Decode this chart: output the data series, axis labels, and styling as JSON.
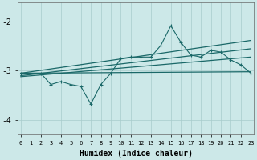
{
  "xlabel": "Humidex (Indice chaleur)",
  "xlim": [
    -0.3,
    23.3
  ],
  "ylim": [
    -4.3,
    -1.6
  ],
  "yticks": [
    -4,
    -3,
    -2
  ],
  "background_color": "#cce8e8",
  "grid_color": "#a8cccc",
  "line_color": "#1a6868",
  "x": [
    0,
    1,
    2,
    3,
    4,
    5,
    6,
    7,
    8,
    9,
    10,
    11,
    12,
    13,
    14,
    15,
    16,
    17,
    18,
    19,
    20,
    21,
    22,
    23
  ],
  "main_line": [
    -3.05,
    -3.05,
    -3.05,
    -3.28,
    -3.22,
    -3.28,
    -3.32,
    -3.68,
    -3.28,
    -3.05,
    -2.75,
    -2.72,
    -2.72,
    -2.72,
    -2.48,
    -2.08,
    -2.42,
    -2.68,
    -2.72,
    -2.58,
    -2.62,
    -2.78,
    -2.88,
    -3.05
  ],
  "trend_steep1": [
    -3.05,
    -2.38
  ],
  "trend_steep2": [
    -3.1,
    -2.55
  ],
  "trend_mid": [
    -3.12,
    -2.72
  ],
  "trend_flat": [
    -3.05,
    -3.02
  ]
}
